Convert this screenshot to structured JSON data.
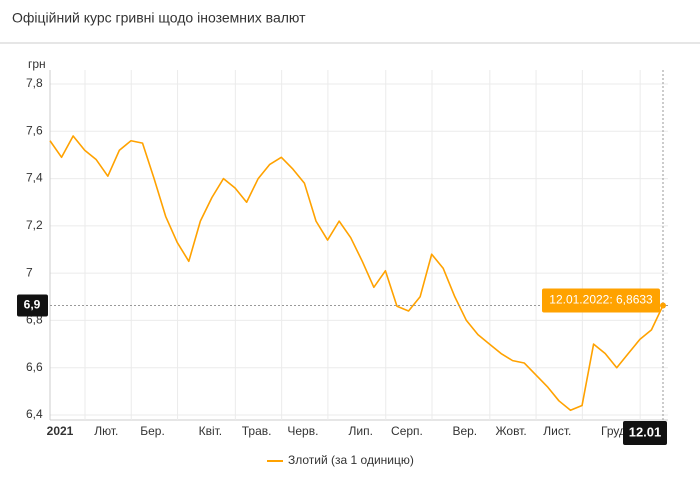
{
  "chart_data": {
    "type": "line",
    "title": "Офіційний курс гривні щодо іноземних валют",
    "y_label": "грн",
    "categories": [
      "2021",
      null,
      null,
      null,
      "Лют.",
      null,
      null,
      null,
      "Бер.",
      null,
      null,
      null,
      null,
      "Квіт.",
      null,
      null,
      null,
      "Трав.",
      null,
      null,
      null,
      "Черв.",
      null,
      null,
      null,
      null,
      "Лип.",
      null,
      null,
      null,
      "Серп.",
      null,
      null,
      null,
      null,
      "Вер.",
      null,
      null,
      null,
      "Жовт.",
      null,
      null,
      null,
      "Лист.",
      null,
      null,
      null,
      null,
      "Груд.",
      null,
      null,
      null,
      null,
      null
    ],
    "series": [
      {
        "name": "Злотий (за 1 одиницю)",
        "color": "#ffa200",
        "values": [
          7.56,
          7.49,
          7.58,
          7.52,
          7.48,
          7.41,
          7.52,
          7.56,
          7.55,
          7.4,
          7.24,
          7.13,
          7.05,
          7.22,
          7.32,
          7.4,
          7.36,
          7.3,
          7.4,
          7.46,
          7.49,
          7.44,
          7.38,
          7.22,
          7.14,
          7.22,
          7.15,
          7.05,
          6.94,
          7.01,
          6.86,
          6.84,
          6.9,
          7.08,
          7.02,
          6.9,
          6.8,
          6.74,
          6.7,
          6.66,
          6.63,
          6.62,
          6.57,
          6.52,
          6.46,
          6.42,
          6.44,
          6.7,
          6.66,
          6.6,
          6.66,
          6.72,
          6.76,
          6.8633
        ]
      }
    ],
    "ylim": [
      6.4,
      7.8
    ],
    "yticks": [
      {
        "value": 6.4,
        "label": "6,4"
      },
      {
        "value": 6.6,
        "label": "6,6"
      },
      {
        "value": 6.8,
        "label": "6,8"
      },
      7,
      {
        "value": 7.2,
        "label": "7,2"
      },
      {
        "value": 7.4,
        "label": "7,4"
      },
      {
        "value": 7.6,
        "label": "7,6"
      },
      {
        "value": 7.8,
        "label": "7,8"
      }
    ],
    "grid": true,
    "crosshair": {
      "y_label": "6,9",
      "x_label": "12.01",
      "tooltip": "12.01.2022: 6,8633"
    }
  }
}
